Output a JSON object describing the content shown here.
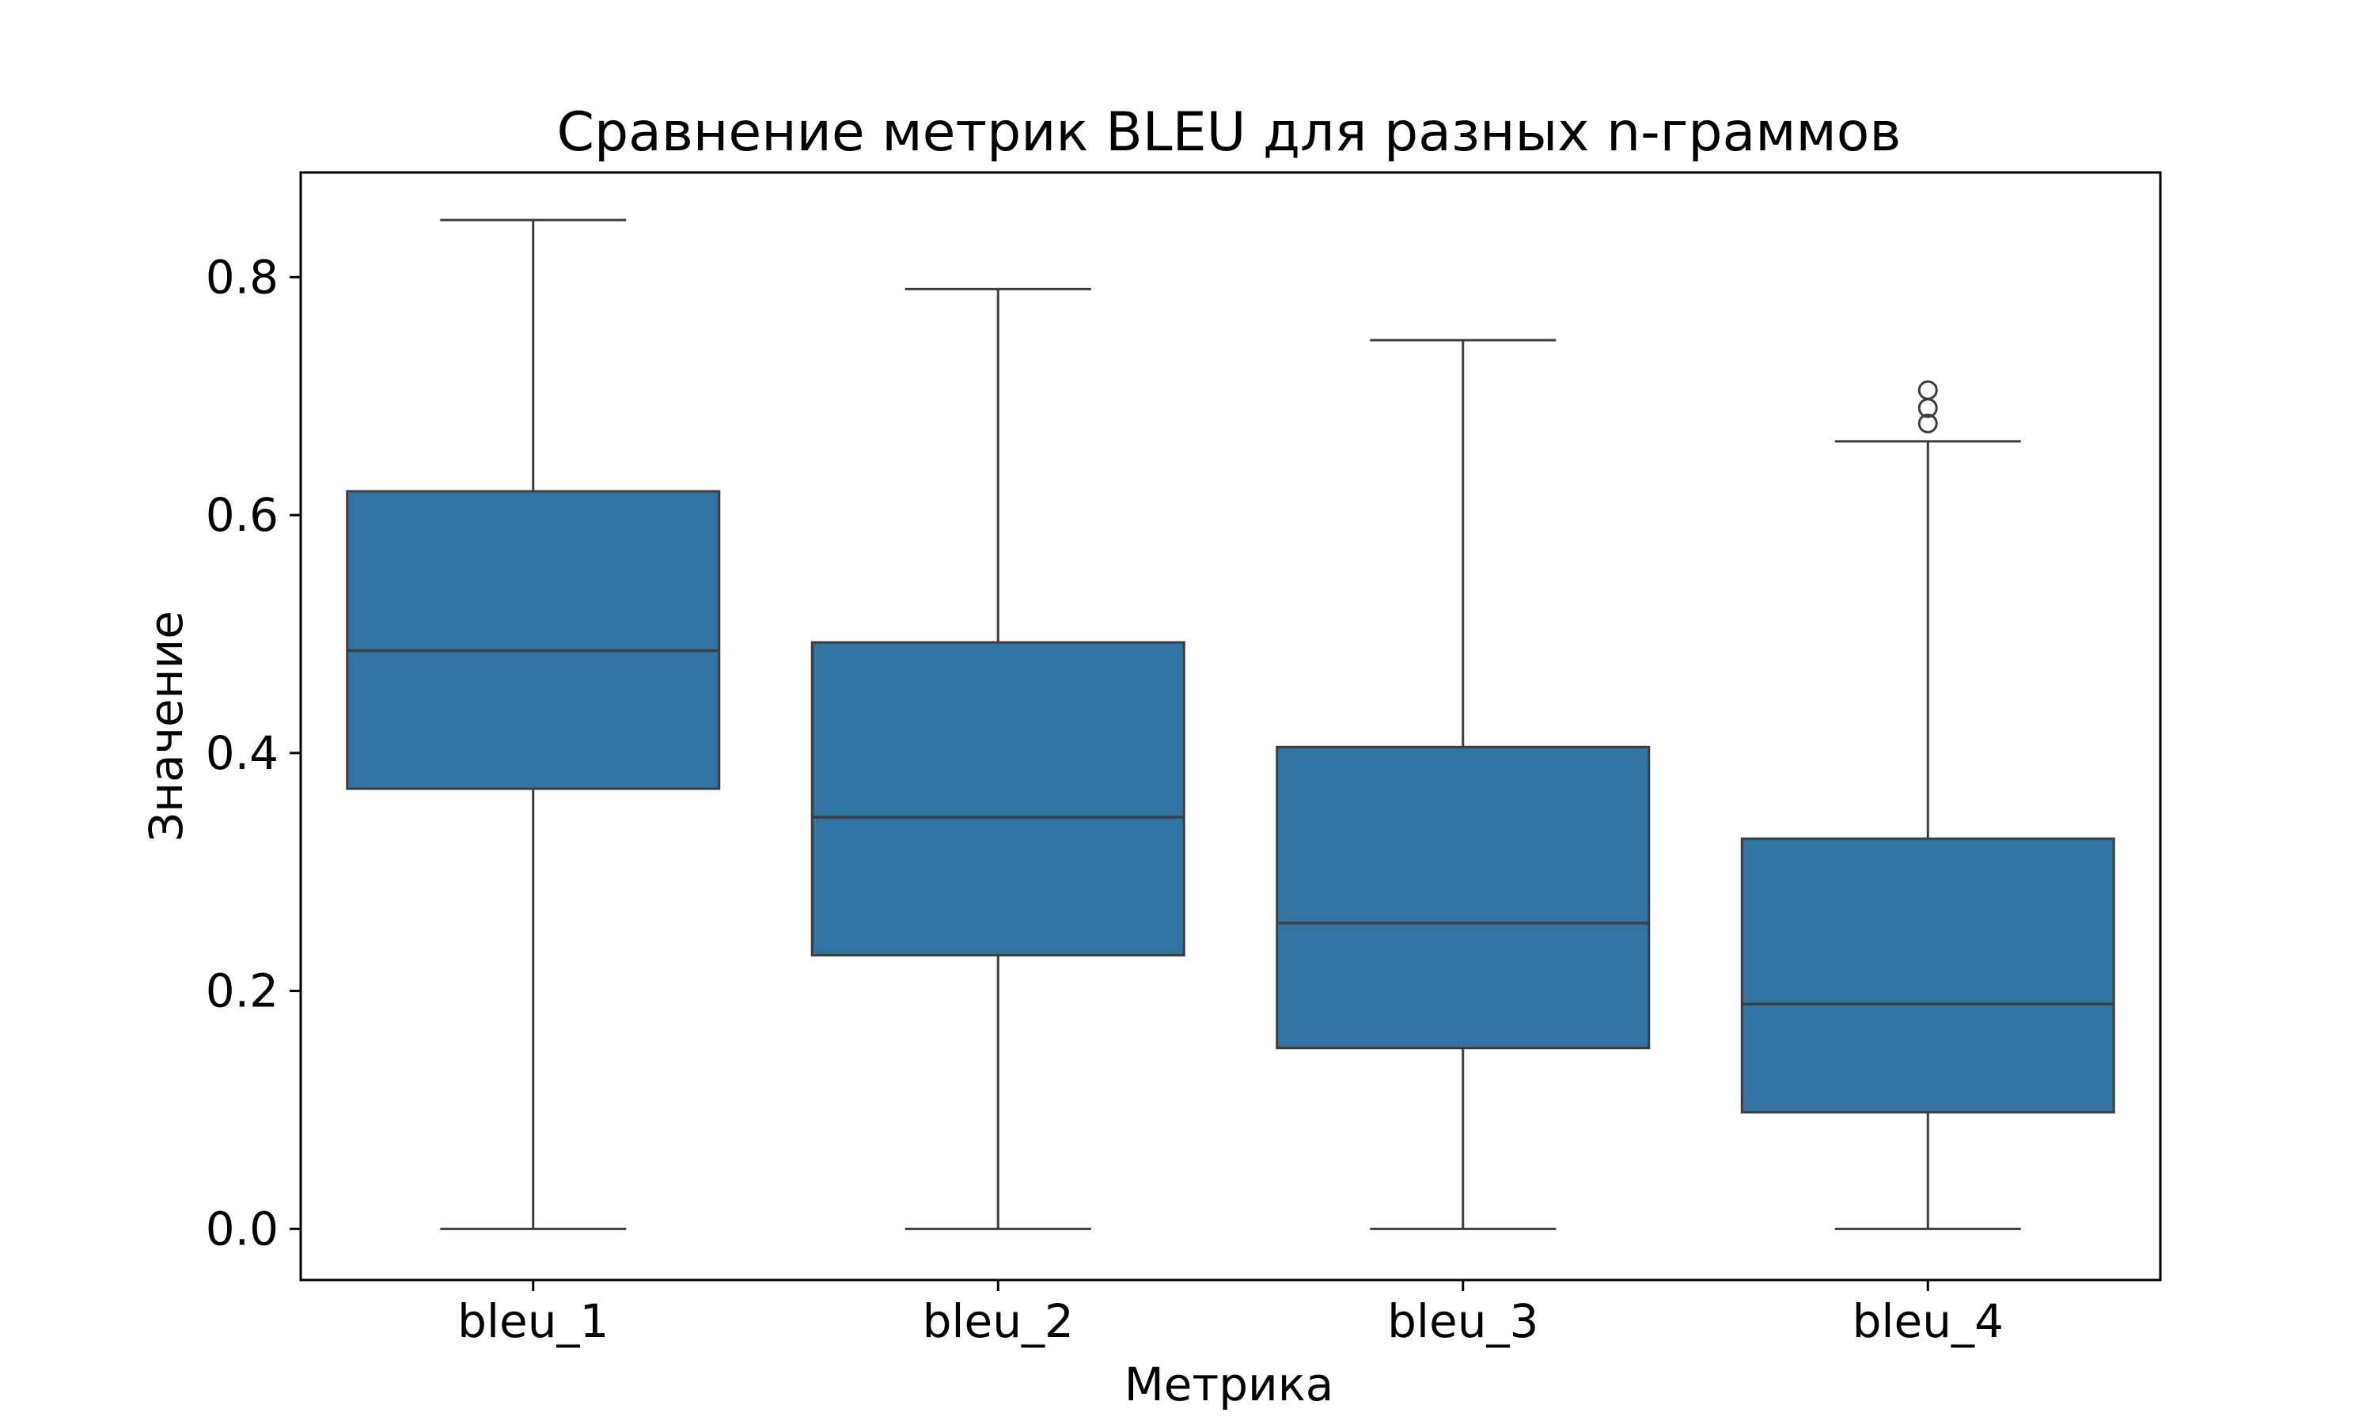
{
  "chart_data": {
    "type": "box",
    "title": "Сравнение метрик BLEU для разных n-граммов",
    "xlabel": "Метрика",
    "ylabel": "Значение",
    "categories": [
      "bleu_1",
      "bleu_2",
      "bleu_3",
      "bleu_4"
    ],
    "ylim": [
      -0.043,
      0.888
    ],
    "yticks": [
      0.0,
      0.2,
      0.4,
      0.6,
      0.8
    ],
    "ytick_labels": [
      "0.0",
      "0.2",
      "0.4",
      "0.6",
      "0.8"
    ],
    "grid": false,
    "legend": "none",
    "box_color": "#3274a1",
    "line_color": "#3d3d3d",
    "boxes": [
      {
        "category": "bleu_1",
        "whisker_low": 0.0,
        "q1": 0.37,
        "median": 0.486,
        "q3": 0.62,
        "whisker_high": 0.848,
        "outliers": []
      },
      {
        "category": "bleu_2",
        "whisker_low": 0.0,
        "q1": 0.23,
        "median": 0.346,
        "q3": 0.493,
        "whisker_high": 0.79,
        "outliers": []
      },
      {
        "category": "bleu_3",
        "whisker_low": 0.0,
        "q1": 0.152,
        "median": 0.257,
        "q3": 0.405,
        "whisker_high": 0.747,
        "outliers": []
      },
      {
        "category": "bleu_4",
        "whisker_low": 0.0,
        "q1": 0.098,
        "median": 0.189,
        "q3": 0.328,
        "whisker_high": 0.662,
        "outliers": [
          0.677,
          0.69,
          0.705
        ]
      }
    ]
  }
}
